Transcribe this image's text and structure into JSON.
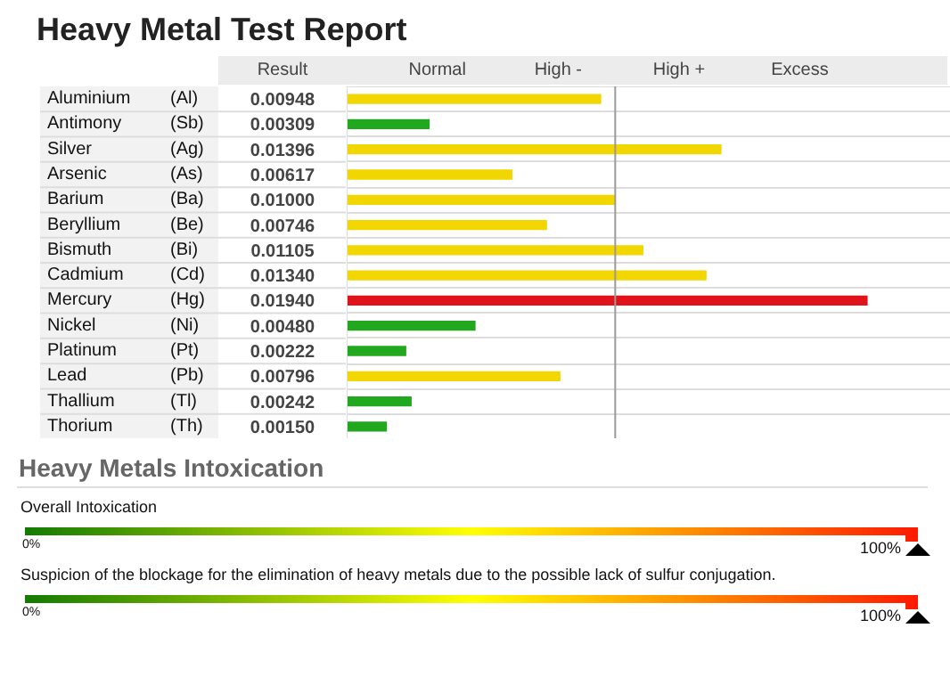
{
  "chart_data": [
    {
      "type": "bar",
      "orientation": "horizontal",
      "title": "Heavy Metal Test Report",
      "categories": [
        "Aluminium (Al)",
        "Antimony (Sb)",
        "Silver (Ag)",
        "Arsenic (As)",
        "Barium (Ba)",
        "Beryllium (Be)",
        "Bismuth (Bi)",
        "Cadmium (Cd)",
        "Mercury (Hg)",
        "Nickel (Ni)",
        "Platinum (Pt)",
        "Lead (Pb)",
        "Thallium (Tl)",
        "Thorium (Th)"
      ],
      "values": [
        0.00948,
        0.00309,
        0.01396,
        0.00617,
        0.01,
        0.00746,
        0.01105,
        0.0134,
        0.0194,
        0.0048,
        0.00222,
        0.00796,
        0.00242,
        0.0015
      ],
      "value_labels": [
        "0.00948",
        "0.00309",
        "0.01396",
        "0.00617",
        "0.01000",
        "0.00746",
        "0.01105",
        "0.01340",
        "0.01940",
        "0.00480",
        "0.00222",
        "0.00796",
        "0.00242",
        "0.00150"
      ],
      "colors": [
        "#f2d600",
        "#22a81e",
        "#f2d600",
        "#f2d600",
        "#f2d600",
        "#f2d600",
        "#f2d600",
        "#f2d600",
        "#e0121a",
        "#22a81e",
        "#22a81e",
        "#f2d600",
        "#22a81e",
        "#22a81e"
      ],
      "annotations": [
        "Result",
        "Normal",
        "High -",
        "High +",
        "Excess"
      ],
      "xlim": [
        0,
        0.0225
      ],
      "ref_lines": [
        {
          "axis": "x",
          "value": 0.01,
          "label": null,
          "color": "#9a9a9a"
        }
      ],
      "grid": "y",
      "legend": false
    },
    {
      "type": "other",
      "title": "Heavy Metals Intoxication",
      "annotations": [
        "Overall Intoxication",
        "0%",
        "100%",
        "Suspicion of the blockage for the elimination of heavy metals due to the possible lack of sulfur conjugation.",
        "0%",
        "100%"
      ]
    }
  ]
}
